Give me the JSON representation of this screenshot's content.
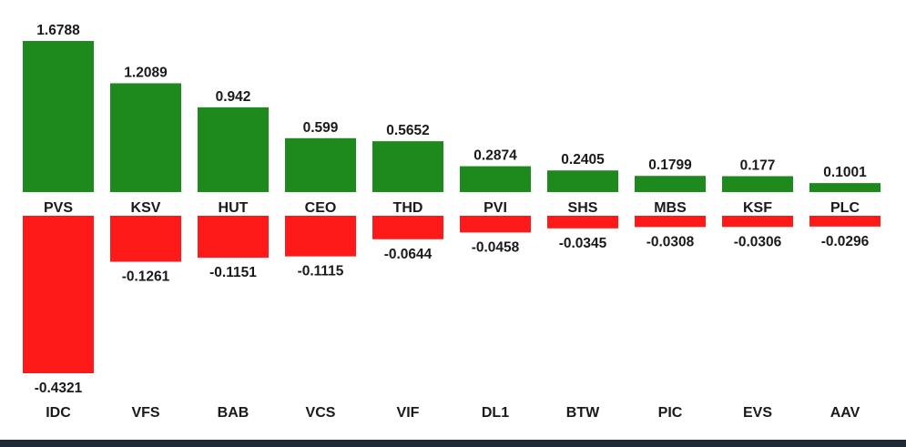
{
  "chart_data": {
    "type": "bar",
    "colors": {
      "positive": "#1e8a1e",
      "negative": "#ff1a1a",
      "footer": "#1f2a35"
    },
    "positive": {
      "categories": [
        "PVS",
        "KSV",
        "HUT",
        "CEO",
        "THD",
        "PVI",
        "SHS",
        "MBS",
        "KSF",
        "PLC"
      ],
      "values": [
        1.6788,
        1.2089,
        0.942,
        0.599,
        0.5652,
        0.2874,
        0.2405,
        0.1799,
        0.177,
        0.1001
      ],
      "labels": [
        "1.6788",
        "1.2089",
        "0.942",
        "0.599",
        "0.5652",
        "0.2874",
        "0.2405",
        "0.1799",
        "0.177",
        "0.1001"
      ]
    },
    "negative": {
      "categories": [
        "IDC",
        "VFS",
        "BAB",
        "VCS",
        "VIF",
        "DL1",
        "BTW",
        "PIC",
        "EVS",
        "AAV"
      ],
      "values": [
        -0.4321,
        -0.1261,
        -0.1151,
        -0.1115,
        -0.0644,
        -0.0458,
        -0.0345,
        -0.0308,
        -0.0306,
        -0.0296
      ],
      "labels": [
        "-0.4321",
        "-0.1261",
        "-0.1151",
        "-0.1115",
        "-0.0644",
        "-0.0458",
        "-0.0345",
        "-0.0308",
        "-0.0306",
        "-0.0296"
      ]
    }
  }
}
